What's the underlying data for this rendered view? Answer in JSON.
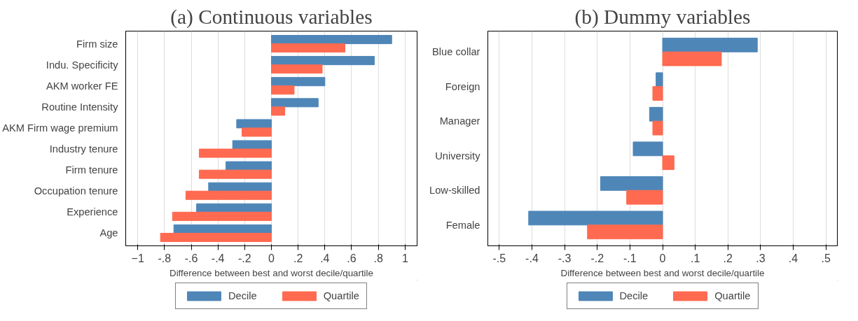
{
  "chart_data": [
    {
      "type": "bar",
      "orientation": "horizontal",
      "title": "(a) Continuous variables",
      "xlabel": "Difference between best and worst decile/quartile",
      "categories": [
        "Firm size",
        "Indu. Specificity",
        "AKM worker FE",
        "Routine Intensity",
        "AKM Firm wage premium",
        "Industry tenure",
        "Firm tenure",
        "Occupation tenure",
        "Experience",
        "Age"
      ],
      "series": [
        {
          "name": "Decile",
          "color": "#4f86b8",
          "values": [
            0.9,
            0.77,
            0.4,
            0.35,
            -0.26,
            -0.29,
            -0.34,
            -0.47,
            -0.56,
            -0.73
          ]
        },
        {
          "name": "Quartile",
          "color": "#ff6a50",
          "values": [
            0.55,
            0.38,
            0.17,
            0.1,
            -0.22,
            -0.54,
            -0.54,
            -0.64,
            -0.74,
            -0.83
          ]
        }
      ],
      "xlim": [
        -1.09,
        1.09
      ],
      "xticks": [
        -1,
        {
          "value": -0.8,
          "label": "-.8"
        },
        {
          "value": -0.6,
          "label": "-.6"
        },
        {
          "value": -0.4,
          "label": "-.4"
        },
        {
          "value": -0.2,
          "label": "-.2"
        },
        0,
        {
          "value": 0.2,
          "label": ".2"
        },
        {
          "value": 0.4,
          "label": ".4"
        },
        {
          "value": 0.6,
          "label": ".6"
        },
        {
          "value": 0.8,
          "label": ".8"
        },
        1
      ],
      "grid": "x",
      "legend": "bottom"
    },
    {
      "type": "bar",
      "orientation": "horizontal",
      "title": "(b) Dummy variables",
      "xlabel": "Difference between best and worst decile/quartile",
      "categories": [
        "Blue collar",
        "Foreign",
        "Manager",
        "University",
        "Low-skilled",
        "Female"
      ],
      "series": [
        {
          "name": "Decile",
          "color": "#4f86b8",
          "values": [
            0.29,
            -0.02,
            -0.04,
            -0.09,
            -0.19,
            -0.41
          ]
        },
        {
          "name": "Quartile",
          "color": "#ff6a50",
          "values": [
            0.18,
            -0.03,
            -0.03,
            0.035,
            -0.11,
            -0.23
          ]
        }
      ],
      "xlim": [
        -0.535,
        0.535
      ],
      "xticks": [
        {
          "value": -0.5,
          "label": "-.5"
        },
        {
          "value": -0.4,
          "label": "-.4"
        },
        {
          "value": -0.3,
          "label": "-.3"
        },
        {
          "value": -0.2,
          "label": "-.2"
        },
        {
          "value": -0.1,
          "label": "-.1"
        },
        0,
        {
          "value": 0.1,
          "label": ".1"
        },
        {
          "value": 0.2,
          "label": ".2"
        },
        {
          "value": 0.3,
          "label": ".3"
        },
        {
          "value": 0.4,
          "label": ".4"
        },
        {
          "value": 0.5,
          "label": ".5"
        }
      ],
      "grid": "x",
      "legend": "bottom"
    }
  ]
}
